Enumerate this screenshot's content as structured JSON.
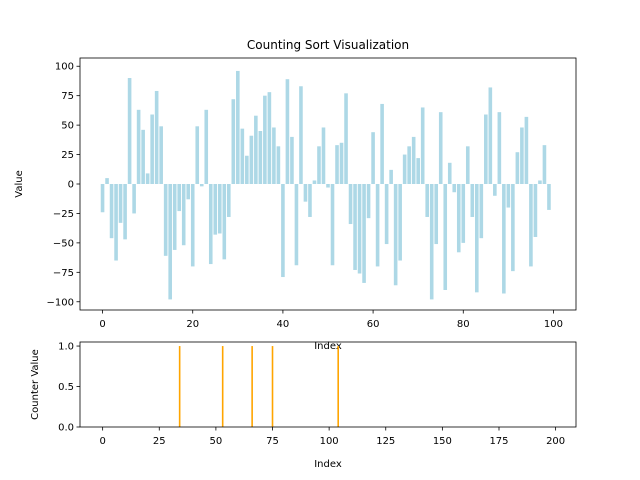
{
  "chart_data": [
    {
      "type": "bar",
      "title": "Counting Sort Visualization",
      "xlabel": "Index",
      "ylabel": "Value",
      "xlim": [
        -5,
        105
      ],
      "ylim": [
        -107,
        107
      ],
      "xticks": [
        0,
        20,
        40,
        60,
        80,
        100
      ],
      "yticks": [
        -100,
        -75,
        -50,
        -25,
        0,
        25,
        50,
        75,
        100
      ],
      "bar_color": "#add8e6",
      "grid": false,
      "x": [
        0,
        1,
        2,
        3,
        4,
        5,
        6,
        7,
        8,
        9,
        10,
        11,
        12,
        13,
        14,
        15,
        16,
        17,
        18,
        19,
        20,
        21,
        22,
        23,
        24,
        25,
        26,
        27,
        28,
        29,
        30,
        31,
        32,
        33,
        34,
        35,
        36,
        37,
        38,
        39,
        40,
        41,
        42,
        43,
        44,
        45,
        46,
        47,
        48,
        49,
        50,
        51,
        52,
        53,
        54,
        55,
        56,
        57,
        58,
        59,
        60,
        61,
        62,
        63,
        64,
        65,
        66,
        67,
        68,
        69,
        70,
        71,
        72,
        73,
        74,
        75,
        76,
        77,
        78,
        79,
        80,
        81,
        82,
        83,
        84,
        85,
        86,
        87,
        88,
        89,
        90,
        91,
        92,
        93,
        94,
        95,
        96,
        97,
        98,
        99
      ],
      "values": [
        -24,
        5,
        -46,
        -65,
        -33,
        -47,
        90,
        -25,
        63,
        46,
        9,
        59,
        79,
        49,
        -61,
        -98,
        -56,
        -23,
        -52,
        -13,
        -70,
        49,
        -2,
        63,
        -68,
        -43,
        -42,
        -64,
        -28,
        72,
        96,
        47,
        24,
        41,
        58,
        45,
        75,
        78,
        48,
        32,
        -79,
        89,
        40,
        -69,
        83,
        -15,
        -28,
        3,
        32,
        48,
        -3,
        -69,
        33,
        35,
        77,
        -34,
        -73,
        -76,
        -84,
        -29,
        44,
        -70,
        68,
        -51,
        12,
        -86,
        -65,
        25,
        32,
        40,
        22,
        65,
        -28,
        -98,
        -51,
        61,
        -90,
        18,
        -7,
        -58,
        -50,
        32,
        -28,
        -92,
        -46,
        59,
        82,
        -10,
        61,
        -93,
        -20,
        -74,
        27,
        48,
        57,
        -70,
        -45,
        3,
        33,
        -22
      ]
    },
    {
      "type": "bar",
      "title": "",
      "xlabel": "Index",
      "ylabel": "Counter Value",
      "xlim": [
        -10,
        209
      ],
      "ylim": [
        0,
        1.05
      ],
      "xticks": [
        0,
        25,
        50,
        75,
        100,
        125,
        150,
        175,
        200
      ],
      "yticks": [
        0.0,
        0.5,
        1.0
      ],
      "ytick_labels": [
        "0.0",
        "0.5",
        "1.0"
      ],
      "bar_color": "#ffa500",
      "grid": false,
      "x": [
        34,
        53,
        66,
        75,
        104
      ],
      "values": [
        1,
        1,
        1,
        1,
        1
      ]
    }
  ]
}
